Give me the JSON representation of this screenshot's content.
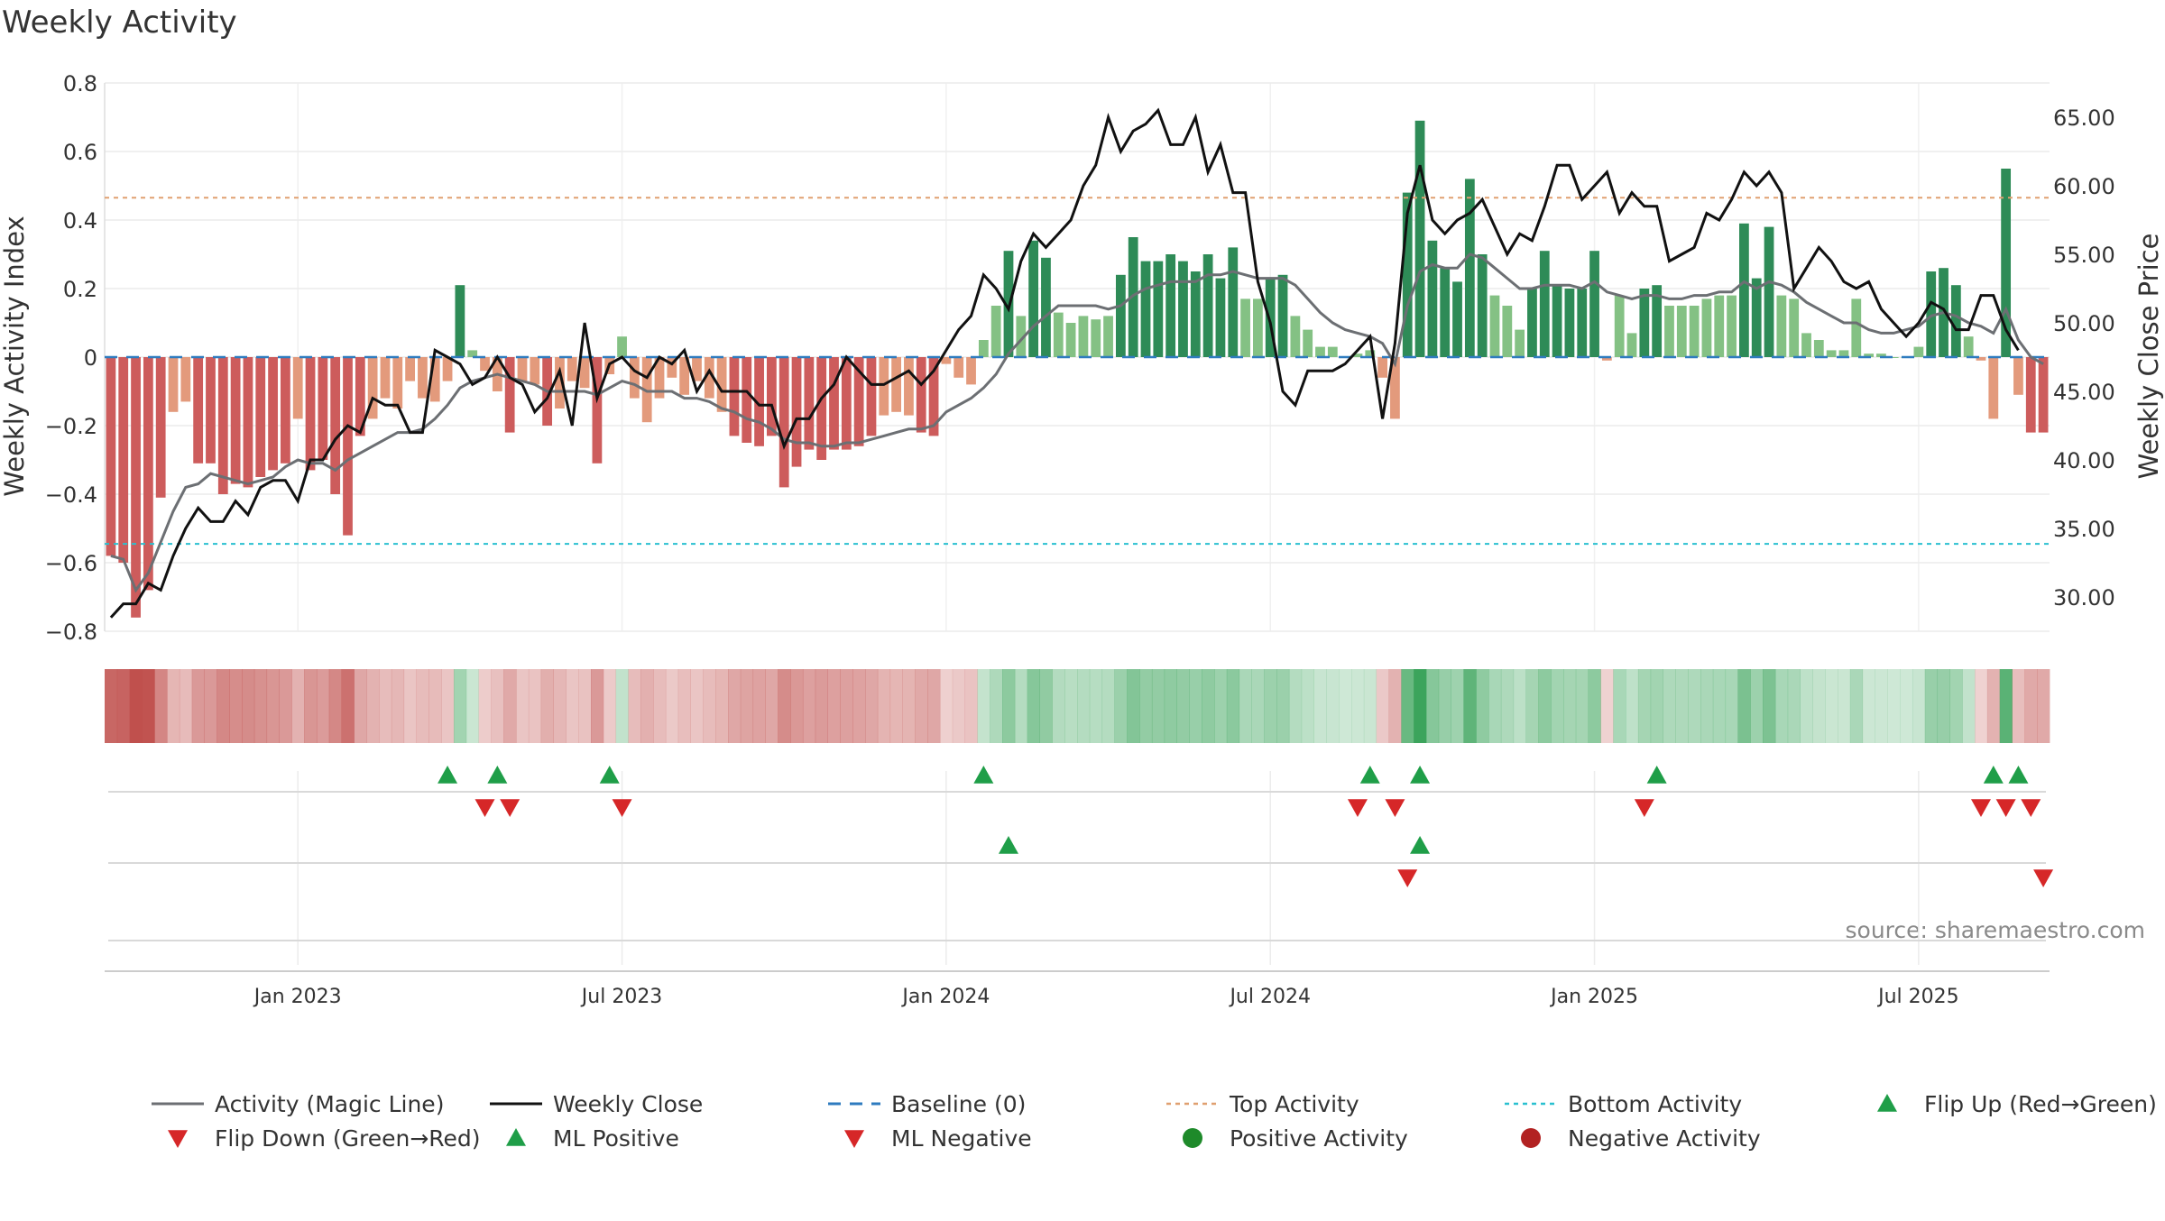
{
  "chart_data": {
    "type": "bar",
    "title": "Weekly Activity",
    "ylabel": "Weekly Activity Index",
    "y2label": "Weekly Close Price",
    "source": "source: sharemaestro.com",
    "ylim": [
      -0.8,
      0.8
    ],
    "y2lim": [
      27.5,
      67.5
    ],
    "y_ticks": [
      {
        "v": 0.8,
        "t": "0.8"
      },
      {
        "v": 0.6,
        "t": "0.6"
      },
      {
        "v": 0.4,
        "t": "0.4"
      },
      {
        "v": 0.2,
        "t": "0.2"
      },
      {
        "v": 0,
        "t": "0"
      },
      {
        "v": -0.2,
        "t": "−0.2"
      },
      {
        "v": -0.4,
        "t": "−0.4"
      },
      {
        "v": -0.6,
        "t": "−0.6"
      },
      {
        "v": -0.8,
        "t": "−0.8"
      }
    ],
    "y2_ticks": [
      {
        "v": 65,
        "t": "65.00"
      },
      {
        "v": 60,
        "t": "60.00"
      },
      {
        "v": 55,
        "t": "55.00"
      },
      {
        "v": 50,
        "t": "50.00"
      },
      {
        "v": 45,
        "t": "45.00"
      },
      {
        "v": 40,
        "t": "40.00"
      },
      {
        "v": 35,
        "t": "35.00"
      },
      {
        "v": 30,
        "t": "30.00"
      }
    ],
    "x_ticks": [
      {
        "i": 15,
        "t": "Jan 2023"
      },
      {
        "i": 41,
        "t": "Jul 2023"
      },
      {
        "i": 67,
        "t": "Jan 2024"
      },
      {
        "i": 93,
        "t": "Jul 2024"
      },
      {
        "i": 119,
        "t": "Jan 2025"
      },
      {
        "i": 145,
        "t": "Jul 2025"
      }
    ],
    "top_activity": 0.465,
    "bottom_activity": -0.545,
    "activity": [
      -0.58,
      -0.6,
      -0.76,
      -0.68,
      -0.41,
      -0.16,
      -0.13,
      -0.31,
      -0.31,
      -0.4,
      -0.37,
      -0.38,
      -0.35,
      -0.33,
      -0.31,
      -0.18,
      -0.33,
      -0.3,
      -0.4,
      -0.52,
      -0.23,
      -0.18,
      -0.12,
      -0.15,
      -0.07,
      -0.12,
      -0.13,
      -0.07,
      0.21,
      0.02,
      -0.04,
      -0.1,
      -0.22,
      -0.07,
      -0.08,
      -0.2,
      -0.15,
      -0.07,
      -0.09,
      -0.31,
      -0.05,
      0.06,
      -0.12,
      -0.19,
      -0.12,
      -0.06,
      -0.11,
      -0.07,
      -0.12,
      -0.16,
      -0.23,
      -0.25,
      -0.26,
      -0.23,
      -0.38,
      -0.32,
      -0.27,
      -0.3,
      -0.27,
      -0.27,
      -0.26,
      -0.23,
      -0.17,
      -0.16,
      -0.17,
      -0.22,
      -0.23,
      -0.02,
      -0.06,
      -0.08,
      0.05,
      0.15,
      0.31,
      0.12,
      0.34,
      0.29,
      0.13,
      0.1,
      0.12,
      0.11,
      0.12,
      0.24,
      0.35,
      0.28,
      0.28,
      0.3,
      0.28,
      0.25,
      0.3,
      0.23,
      0.32,
      0.17,
      0.17,
      0.23,
      0.24,
      0.12,
      0.08,
      0.03,
      0.03,
      0.0,
      0.01,
      0.02,
      -0.06,
      -0.18,
      0.48,
      0.69,
      0.34,
      0.26,
      0.22,
      0.52,
      0.3,
      0.18,
      0.15,
      0.08,
      0.2,
      0.31,
      0.21,
      0.2,
      0.2,
      0.31,
      -0.01,
      0.18,
      0.07,
      0.2,
      0.21,
      0.15,
      0.15,
      0.15,
      0.17,
      0.18,
      0.18,
      0.39,
      0.23,
      0.38,
      0.18,
      0.17,
      0.07,
      0.05,
      0.02,
      0.02,
      0.17,
      0.01,
      0.01,
      0.0,
      0.0,
      0.03,
      0.25,
      0.26,
      0.21,
      0.06,
      -0.01,
      -0.18,
      0.55,
      -0.11,
      -0.22,
      -0.22
    ],
    "magic_line": [
      -0.58,
      -0.59,
      -0.68,
      -0.63,
      -0.54,
      -0.45,
      -0.38,
      -0.37,
      -0.34,
      -0.35,
      -0.36,
      -0.37,
      -0.36,
      -0.35,
      -0.32,
      -0.3,
      -0.31,
      -0.31,
      -0.33,
      -0.3,
      -0.28,
      -0.26,
      -0.24,
      -0.22,
      -0.22,
      -0.21,
      -0.18,
      -0.14,
      -0.09,
      -0.07,
      -0.06,
      -0.05,
      -0.06,
      -0.07,
      -0.08,
      -0.1,
      -0.1,
      -0.1,
      -0.1,
      -0.11,
      -0.09,
      -0.07,
      -0.08,
      -0.1,
      -0.1,
      -0.1,
      -0.12,
      -0.12,
      -0.13,
      -0.15,
      -0.16,
      -0.18,
      -0.19,
      -0.21,
      -0.24,
      -0.25,
      -0.25,
      -0.26,
      -0.26,
      -0.25,
      -0.25,
      -0.24,
      -0.23,
      -0.22,
      -0.21,
      -0.21,
      -0.2,
      -0.16,
      -0.14,
      -0.12,
      -0.09,
      -0.05,
      0.01,
      0.05,
      0.09,
      0.12,
      0.15,
      0.15,
      0.15,
      0.15,
      0.14,
      0.15,
      0.18,
      0.2,
      0.21,
      0.22,
      0.22,
      0.22,
      0.24,
      0.24,
      0.25,
      0.24,
      0.23,
      0.23,
      0.23,
      0.21,
      0.17,
      0.13,
      0.1,
      0.08,
      0.07,
      0.06,
      0.04,
      -0.02,
      0.15,
      0.25,
      0.27,
      0.26,
      0.26,
      0.3,
      0.29,
      0.26,
      0.23,
      0.2,
      0.2,
      0.21,
      0.21,
      0.21,
      0.2,
      0.22,
      0.19,
      0.18,
      0.17,
      0.18,
      0.18,
      0.17,
      0.17,
      0.18,
      0.18,
      0.19,
      0.19,
      0.22,
      0.2,
      0.22,
      0.21,
      0.19,
      0.16,
      0.14,
      0.12,
      0.1,
      0.1,
      0.08,
      0.07,
      0.07,
      0.08,
      0.09,
      0.12,
      0.13,
      0.12,
      0.1,
      0.09,
      0.07,
      0.14,
      0.05,
      0.0,
      -0.02
    ],
    "weekly_close": [
      28.5,
      29.5,
      29.5,
      31.0,
      30.5,
      33.0,
      35.0,
      36.5,
      35.5,
      35.5,
      37.0,
      36.0,
      38.0,
      38.5,
      38.5,
      37.0,
      40.0,
      40.0,
      41.5,
      42.5,
      42.0,
      44.5,
      44.0,
      44.0,
      42.0,
      42.0,
      48.0,
      47.5,
      47.0,
      45.5,
      46.0,
      47.5,
      46.0,
      45.5,
      43.5,
      44.5,
      46.5,
      42.5,
      50.0,
      44.5,
      47.0,
      47.5,
      46.5,
      46.0,
      47.5,
      47.0,
      48.0,
      45.0,
      46.5,
      45.0,
      45.0,
      45.0,
      44.0,
      44.0,
      41.0,
      43.0,
      43.0,
      44.5,
      45.5,
      47.5,
      46.5,
      45.5,
      45.5,
      46.0,
      46.5,
      45.5,
      46.5,
      48.0,
      49.5,
      50.5,
      53.5,
      52.5,
      51.0,
      54.5,
      56.5,
      55.5,
      56.5,
      57.5,
      60.0,
      61.5,
      65.0,
      62.5,
      64.0,
      64.5,
      65.5,
      63.0,
      63.0,
      65.0,
      61.0,
      63.0,
      59.5,
      59.5,
      53.0,
      50.0,
      45.0,
      44.0,
      46.5,
      46.5,
      46.5,
      47.0,
      48.0,
      49.0,
      43.0,
      48.5,
      58.0,
      61.5,
      57.5,
      56.5,
      57.5,
      58.0,
      59.0,
      57.0,
      55.0,
      56.5,
      56.0,
      58.5,
      61.5,
      61.5,
      59.0,
      60.0,
      61.0,
      58.0,
      59.5,
      58.5,
      58.5,
      54.5,
      55.0,
      55.5,
      58.0,
      57.5,
      59.0,
      61.0,
      60.0,
      61.0,
      59.5,
      52.5,
      54.0,
      55.5,
      54.5,
      53.0,
      52.5,
      53.0,
      51.0,
      50.0,
      49.0,
      50.0,
      51.5,
      51.0,
      49.5,
      49.5,
      52.0,
      52.0,
      49.5,
      48.0
    ],
    "flip_up_row1": [
      27,
      31,
      40,
      70,
      101,
      105,
      124,
      151,
      153
    ],
    "flip_down_row1": [
      30,
      32,
      41,
      100,
      103,
      123,
      150,
      152,
      154
    ],
    "ml_positive": [
      72,
      105
    ],
    "ml_negative": [
      104,
      155
    ],
    "legend": [
      {
        "label": "Activity (Magic Line)",
        "type": "line",
        "color": "#6c6f73"
      },
      {
        "label": "Weekly Close",
        "type": "line",
        "color": "#111111"
      },
      {
        "label": "Baseline (0)",
        "type": "dash",
        "color": "#2e7bbf"
      },
      {
        "label": "Top Activity",
        "type": "dot",
        "color": "#e0a070"
      },
      {
        "label": "Bottom Activity",
        "type": "dot",
        "color": "#2ac0d0"
      },
      {
        "label": "Flip Up (Red→Green)",
        "type": "tri-up",
        "color": "#1f9e48"
      },
      {
        "label": "Flip Down (Green→Red)",
        "type": "tri-down",
        "color": "#d62728"
      },
      {
        "label": "ML Positive",
        "type": "tri-up",
        "color": "#1f9e48"
      },
      {
        "label": "ML Negative",
        "type": "tri-down",
        "color": "#d62728"
      },
      {
        "label": "Positive Activity",
        "type": "circle",
        "color": "#1e8a2a"
      },
      {
        "label": "Negative Activity",
        "type": "circle",
        "color": "#b22222"
      }
    ],
    "colors": {
      "pos_strong": "#2e8b57",
      "pos_light": "#84c184",
      "neg_strong": "#cd5c5c",
      "neg_light": "#e39a7c",
      "magic": "#6c6f73",
      "close": "#111111",
      "baseline": "#2e7bbf",
      "top": "#e0a070",
      "bottom": "#2ac0d0"
    }
  }
}
